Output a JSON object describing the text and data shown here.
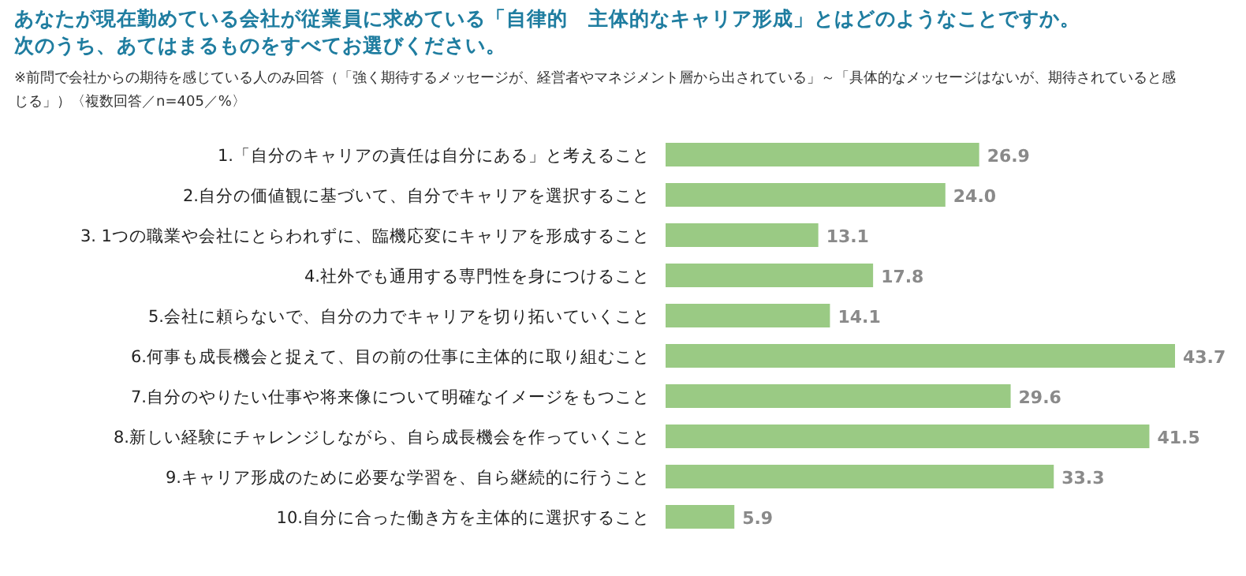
{
  "chart_data": {
    "type": "bar",
    "orientation": "horizontal",
    "title": "あなたが現在勤めている会社が従業員に求めている「自律的　主体的なキャリア形成」とはどのようなことですか。",
    "subtitle": "次のうち、あてはまるものをすべてお選びください。",
    "annotations": [
      "※前問で会社からの期待を感じている人のみ回答（「強く期待するメッセージが、経営者やマネジメント層から出されている」～「具体的なメッセージはないが、期待されていると感じる」）〈複数回答／n=405／%〉"
    ],
    "categories": [
      "1.「自分のキャリアの責任は自分にある」と考えること",
      "2.自分の価値観に基づいて、自分でキャリアを選択すること",
      "3. 1つの職業や会社にとらわれずに、臨機応変にキャリアを形成すること",
      "4.社外でも通用する専門性を身につけること",
      "5.会社に頼らないで、自分の力でキャリアを切り拓いていくこと",
      "6.何事も成長機会と捉えて、目の前の仕事に主体的に取り組むこと",
      "7.自分のやりたい仕事や将来像について明確なイメージをもつこと",
      "8.新しい経験にチャレンジしながら、自ら成長機会を作っていくこと",
      "9.キャリア形成のために必要な学習を、自ら継続的に行うこと",
      "10.自分に合った働き方を主体的に選択すること"
    ],
    "values": [
      26.9,
      24.0,
      13.1,
      17.8,
      14.1,
      43.7,
      29.6,
      41.5,
      33.3,
      5.9
    ],
    "color": "#9aca84",
    "value_labels": [
      "26.9",
      "24.0",
      "13.1",
      "17.8",
      "14.1",
      "43.7",
      "29.6",
      "41.5",
      "33.3",
      "5.9"
    ]
  }
}
